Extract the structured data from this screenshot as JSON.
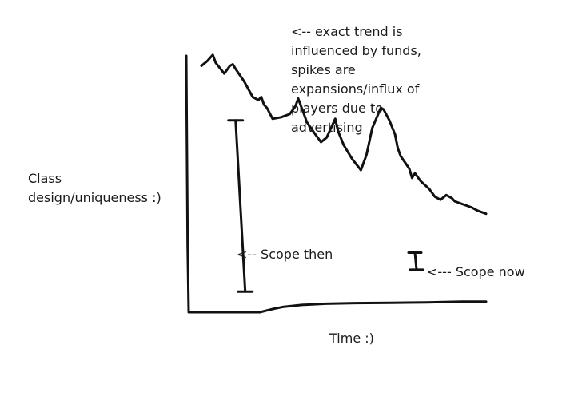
{
  "chart_data": {
    "type": "line",
    "title": "",
    "xlabel": "Time :)",
    "ylabel_lines": [
      "Class",
      "design/uniqueness :)"
    ],
    "series": [
      {
        "name": "",
        "x": [
          0,
          2,
          4,
          5,
          8,
          10,
          11,
          12,
          15,
          18,
          20,
          21,
          22,
          23,
          25,
          28,
          31,
          33,
          34,
          36,
          37,
          40,
          42,
          44,
          47,
          48,
          50,
          52,
          53,
          56,
          58,
          60,
          63,
          64,
          66,
          68,
          69,
          70,
          73,
          74,
          75,
          77,
          80,
          82,
          84,
          86,
          88,
          89,
          92,
          95,
          97,
          100
        ],
        "y": [
          89,
          92,
          96,
          91,
          84,
          89,
          90,
          87,
          79,
          69,
          67,
          69,
          64,
          62,
          55,
          56,
          58,
          63,
          68,
          58,
          53,
          45,
          40,
          43,
          55,
          47,
          38,
          32,
          29,
          22,
          32,
          49,
          62,
          61,
          54,
          45,
          36,
          31,
          23,
          17,
          20,
          15,
          10,
          5,
          3,
          6,
          4,
          2,
          0,
          -2,
          -4,
          -6
        ]
      }
    ],
    "baseline": {
      "x": [
        0,
        24,
        26,
        29,
        32,
        38,
        46,
        56,
        68,
        80,
        92,
        100
      ],
      "y": [
        0,
        0,
        0.5,
        1.2,
        1.8,
        2.4,
        2.8,
        3,
        3.1,
        3.2,
        3.5,
        3.5
      ]
    },
    "annotations": [
      {
        "lines": [
          "<-- exact trend is",
          "influenced by funds,",
          "spikes are",
          "expansions/influx of",
          "players due to",
          "advertising"
        ]
      },
      {
        "text": "<-- Scope then",
        "bar": {
          "x": 12,
          "y_top": 54,
          "y_bottom": -56
        }
      },
      {
        "text": "<--- Scope now",
        "bar": {
          "x": 75,
          "y_top": -31,
          "y_bottom": -42
        }
      }
    ],
    "grid": false,
    "legend": false,
    "colors": {
      "ink": "#111111",
      "background": "#ffffff"
    }
  }
}
